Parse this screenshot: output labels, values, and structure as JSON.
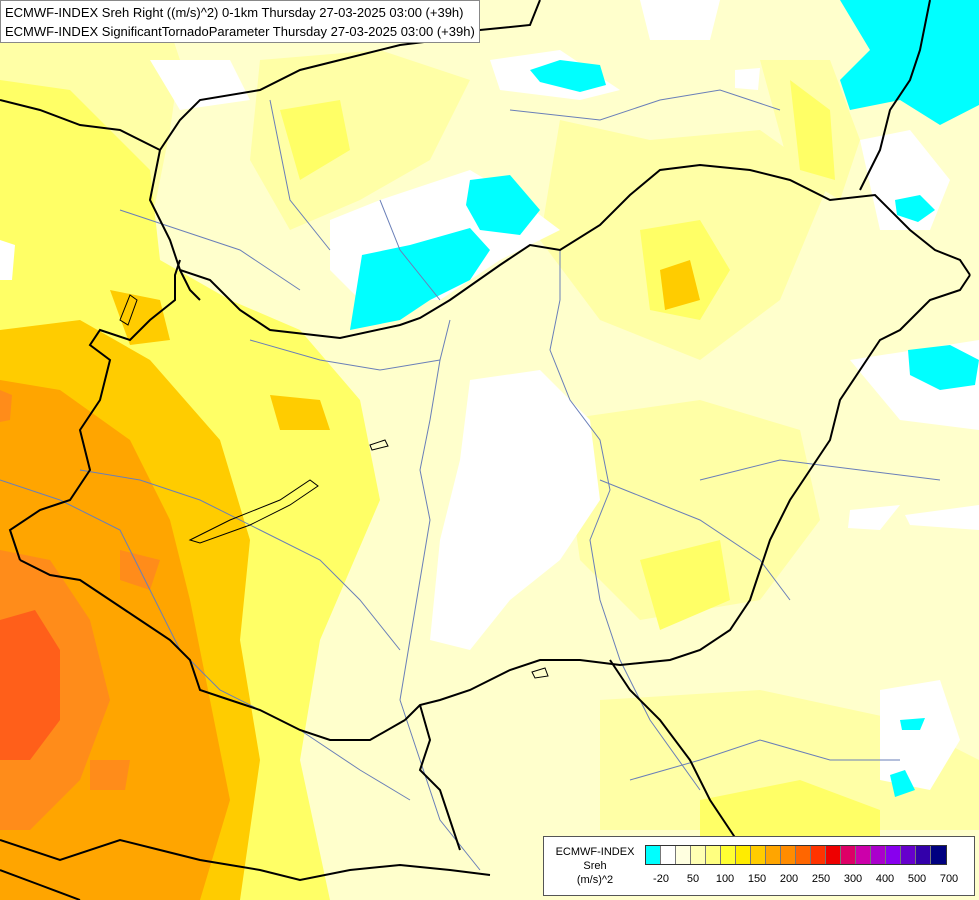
{
  "title": {
    "line1": "ECMWF-INDEX Sreh Right ((m/s)^2) 0-1km Thursday 27-03-2025 03:00 (+39h)",
    "line2": "ECMWF-INDEX SignificantTornadoParameter Thursday 27-03-2025 03:00 (+39h)"
  },
  "legend": {
    "source": "ECMWF-INDEX",
    "param": "Sreh",
    "unit": "(m/s)^2",
    "colors": [
      "#00ffff",
      "#ffffff",
      "#ffffe0",
      "#ffffb3",
      "#ffff80",
      "#ffff33",
      "#ffec00",
      "#ffcc00",
      "#ffa500",
      "#ff8c00",
      "#ff6600",
      "#ff3300",
      "#ee0000",
      "#dd0066",
      "#cc00aa",
      "#aa00cc",
      "#8800ee",
      "#6600cc",
      "#3300aa",
      "#000080"
    ],
    "ticks": [
      "-20",
      "50",
      "100",
      "150",
      "200",
      "250",
      "300",
      "400",
      "500",
      "700"
    ]
  },
  "map_colors": {
    "base": "#ffffcc",
    "pale": "#ffffa6",
    "yellow": "#ffff66",
    "gold": "#ffcc00",
    "orange": "#ffa500",
    "deep_orange": "#ff8000",
    "red_orange": "#ff5a14",
    "white": "#ffffff",
    "cyan": "#00ffff",
    "rivers": "#6a7fb8",
    "borders": "#000000"
  }
}
